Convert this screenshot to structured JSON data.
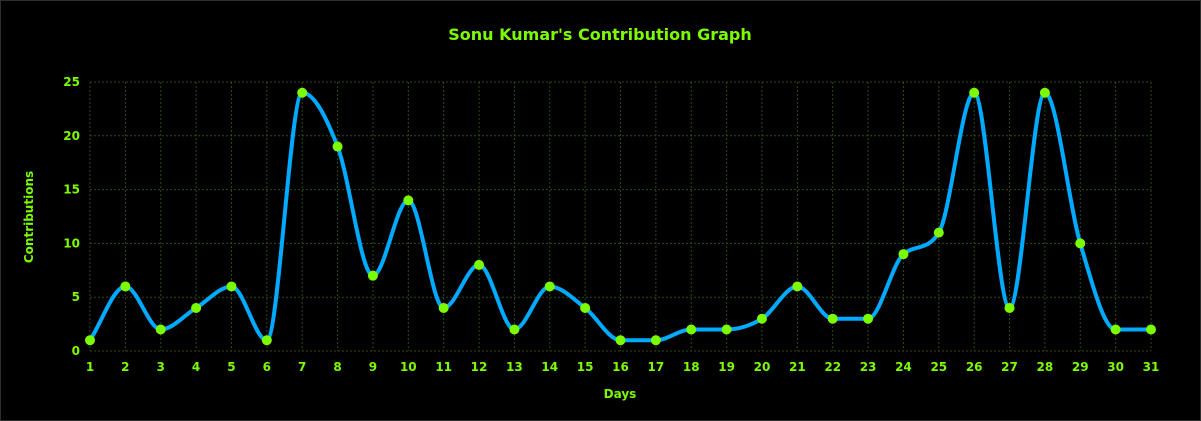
{
  "chart_data": {
    "type": "line",
    "title": "Sonu Kumar's Contribution Graph",
    "xlabel": "Days",
    "ylabel": "Contributions",
    "x": [
      1,
      2,
      3,
      4,
      5,
      6,
      7,
      8,
      9,
      10,
      11,
      12,
      13,
      14,
      15,
      16,
      17,
      18,
      19,
      20,
      21,
      22,
      23,
      24,
      25,
      26,
      27,
      28,
      29,
      30,
      31
    ],
    "series": [
      {
        "values": [
          1,
          6,
          2,
          4,
          6,
          1,
          24,
          19,
          7,
          14,
          4,
          8,
          2,
          6,
          4,
          1,
          1,
          2,
          2,
          3,
          6,
          3,
          3,
          9,
          11,
          24,
          4,
          24,
          10,
          2,
          2
        ]
      }
    ],
    "yticks": [
      0,
      5,
      10,
      15,
      20,
      25
    ],
    "ylim": [
      0,
      25
    ],
    "xlim": [
      1,
      31
    ],
    "grid": true,
    "smooth": true,
    "legend": "none"
  },
  "colors": {
    "background": "#000000",
    "text": "#7cfc00",
    "line": "#00aaff",
    "point": "#7cfc00",
    "grid": "#2f4a14"
  }
}
